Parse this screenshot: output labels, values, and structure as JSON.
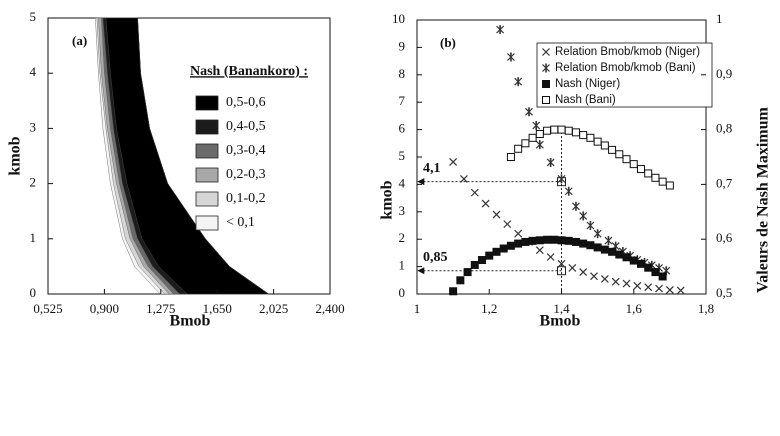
{
  "chart_data": [
    {
      "type": "contour",
      "label": "(a)",
      "xlabel": "Bmob",
      "ylabel": "kmob",
      "xlim": [
        0.525,
        2.4
      ],
      "xticks": [
        {
          "value": 0.525,
          "label": "0,525"
        },
        {
          "value": 0.9,
          "label": "0,900"
        },
        {
          "value": 1.275,
          "label": "1,275"
        },
        {
          "value": 1.65,
          "label": "1,650"
        },
        {
          "value": 2.025,
          "label": "2,025"
        },
        {
          "value": 2.4,
          "label": "2,400"
        }
      ],
      "ylim": [
        0,
        5
      ],
      "yticks": [
        0,
        1,
        2,
        3,
        4,
        5
      ],
      "legend_title": "Nash (Banankoro) :",
      "y": [
        0,
        0.5,
        1,
        2,
        3,
        4,
        5
      ],
      "x_right": [
        1.99,
        1.73,
        1.57,
        1.32,
        1.2,
        1.14,
        1.12
      ],
      "series": [
        {
          "name": "0,5-0,6",
          "color": "#000000",
          "values": [
            1.45,
            1.26,
            1.15,
            1.05,
            0.98,
            0.94,
            0.91
          ]
        },
        {
          "name": "0,4-0,5",
          "color": "#1c1c1c",
          "values": [
            1.4,
            1.22,
            1.12,
            1.02,
            0.96,
            0.92,
            0.89
          ]
        },
        {
          "name": "0,3-0,4",
          "color": "#6a6a6a",
          "values": [
            1.36,
            1.19,
            1.09,
            1.0,
            0.94,
            0.9,
            0.88
          ]
        },
        {
          "name": "0,2-0,3",
          "color": "#a8a8a8",
          "values": [
            1.33,
            1.16,
            1.07,
            0.98,
            0.92,
            0.88,
            0.86
          ]
        },
        {
          "name": "0,1-0,2",
          "color": "#d6d6d6",
          "values": [
            1.3,
            1.13,
            1.04,
            0.96,
            0.91,
            0.87,
            0.85
          ]
        },
        {
          "name": "< 0,1",
          "color": "#f4f4f4",
          "values": [
            1.27,
            1.1,
            1.02,
            0.94,
            0.89,
            0.86,
            0.84
          ]
        }
      ]
    },
    {
      "type": "scatter",
      "label": "(b)",
      "xlabel": "Bmob",
      "ylabel": "kmob",
      "y2label": "Valeurs de Nash Maximum",
      "xlim": [
        1,
        1.8
      ],
      "xticks": [
        1,
        {
          "value": 1.2,
          "label": "1,2"
        },
        {
          "value": 1.4,
          "label": "1,4"
        },
        {
          "value": 1.6,
          "label": "1,6"
        },
        {
          "value": 1.8,
          "label": "1,8"
        }
      ],
      "ylim": [
        0,
        10
      ],
      "yticks": [
        0,
        1,
        2,
        3,
        4,
        5,
        6,
        7,
        8,
        9,
        10
      ],
      "y2lim": [
        0.5,
        1
      ],
      "y2ticks": [
        {
          "value": 0.5,
          "label": "0,5"
        },
        {
          "value": 0.6,
          "label": "0,6"
        },
        {
          "value": 0.7,
          "label": "0,7"
        },
        {
          "value": 0.8,
          "label": "0,8"
        },
        {
          "value": 0.9,
          "label": "0,9"
        },
        1
      ],
      "series": [
        {
          "name": "Relation Bmob/kmob (Niger)",
          "marker": "x",
          "color": "#333333",
          "x": [
            1.1,
            1.13,
            1.16,
            1.19,
            1.22,
            1.25,
            1.28,
            1.31,
            1.34,
            1.37,
            1.4,
            1.43,
            1.46,
            1.49,
            1.52,
            1.55,
            1.58,
            1.61,
            1.64,
            1.67,
            1.7,
            1.73
          ],
          "values": [
            4.82,
            4.2,
            3.7,
            3.3,
            2.9,
            2.55,
            2.2,
            1.9,
            1.6,
            1.35,
            1.1,
            0.95,
            0.8,
            0.65,
            0.55,
            0.45,
            0.38,
            0.3,
            0.25,
            0.2,
            0.15,
            0.13
          ]
        },
        {
          "name": "Relation Bmob/kmob (Bani)",
          "marker": "asterisk",
          "color": "#333333",
          "x": [
            1.23,
            1.26,
            1.28,
            1.31,
            1.33,
            1.34,
            1.37,
            1.4,
            1.42,
            1.44,
            1.46,
            1.48,
            1.5,
            1.53,
            1.55,
            1.57,
            1.59,
            1.61,
            1.63,
            1.65,
            1.67,
            1.69
          ],
          "values": [
            9.65,
            8.65,
            7.75,
            6.65,
            6.15,
            5.45,
            4.8,
            4.2,
            3.75,
            3.2,
            2.85,
            2.5,
            2.2,
            1.95,
            1.75,
            1.55,
            1.4,
            1.25,
            1.15,
            1.05,
            0.95,
            0.85
          ]
        },
        {
          "name": "Nash (Niger)",
          "marker": "square",
          "color": "#111111",
          "axis": "y2",
          "x": [
            1.1,
            1.12,
            1.14,
            1.16,
            1.18,
            1.2,
            1.22,
            1.24,
            1.26,
            1.28,
            1.3,
            1.32,
            1.34,
            1.36,
            1.38,
            1.4,
            1.42,
            1.44,
            1.46,
            1.48,
            1.5,
            1.52,
            1.54,
            1.56,
            1.58,
            1.6,
            1.62,
            1.64,
            1.66,
            1.68
          ],
          "values": [
            0.505,
            0.525,
            0.54,
            0.553,
            0.562,
            0.57,
            0.577,
            0.583,
            0.588,
            0.592,
            0.595,
            0.597,
            0.598,
            0.599,
            0.599,
            0.598,
            0.597,
            0.595,
            0.592,
            0.589,
            0.585,
            0.581,
            0.577,
            0.572,
            0.567,
            0.561,
            0.555,
            0.548,
            0.54,
            0.532
          ]
        },
        {
          "name": "Nash (Bani)",
          "marker": "square-open",
          "color": "#111111",
          "axis": "y2",
          "x": [
            1.26,
            1.28,
            1.3,
            1.32,
            1.34,
            1.36,
            1.38,
            1.4,
            1.42,
            1.44,
            1.46,
            1.48,
            1.5,
            1.52,
            1.54,
            1.56,
            1.58,
            1.6,
            1.62,
            1.64,
            1.66,
            1.68,
            1.7
          ],
          "values": [
            0.75,
            0.765,
            0.775,
            0.785,
            0.792,
            0.798,
            0.8,
            0.8,
            0.798,
            0.795,
            0.79,
            0.785,
            0.778,
            0.771,
            0.763,
            0.755,
            0.746,
            0.737,
            0.728,
            0.72,
            0.712,
            0.705,
            0.698
          ]
        }
      ],
      "annotations": [
        {
          "text": "4,1",
          "x": 1.4,
          "y": 4.1
        },
        {
          "text": "0,85",
          "x": 1.4,
          "y": 0.85
        }
      ]
    }
  ]
}
